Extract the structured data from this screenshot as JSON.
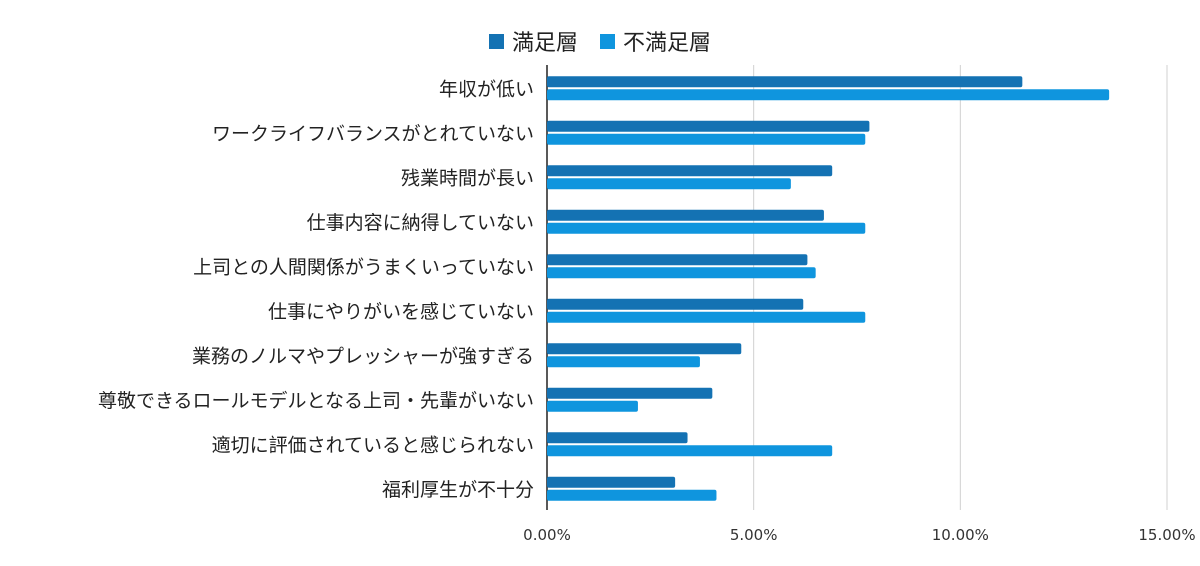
{
  "chart_data": {
    "type": "bar",
    "orientation": "horizontal",
    "categories": [
      "年収が低い",
      "ワークライフバランスがとれていない",
      "残業時間が長い",
      "仕事内容に納得していない",
      "上司との人間関係がうまくいっていない",
      "仕事にやりがいを感じていない",
      "業務のノルマやプレッシャーが強すぎる",
      "尊敬できるロールモデルとなる上司・先輩がいない",
      "適切に評価されていると感じられない",
      "福利厚生が不十分"
    ],
    "series": [
      {
        "name": "満足層",
        "color": "#1472b3",
        "values": [
          11.5,
          7.8,
          6.9,
          6.7,
          6.3,
          6.2,
          4.7,
          4.0,
          3.4,
          3.1
        ]
      },
      {
        "name": "不満足層",
        "color": "#0f95de",
        "values": [
          13.6,
          7.7,
          5.9,
          7.7,
          6.5,
          7.7,
          3.7,
          2.2,
          6.9,
          4.1
        ]
      }
    ],
    "xlim": [
      0,
      15
    ],
    "xticks": [
      "0.00%",
      "5.00%",
      "10.00%",
      "15.00%"
    ],
    "grid": true,
    "legend_position": "top"
  }
}
